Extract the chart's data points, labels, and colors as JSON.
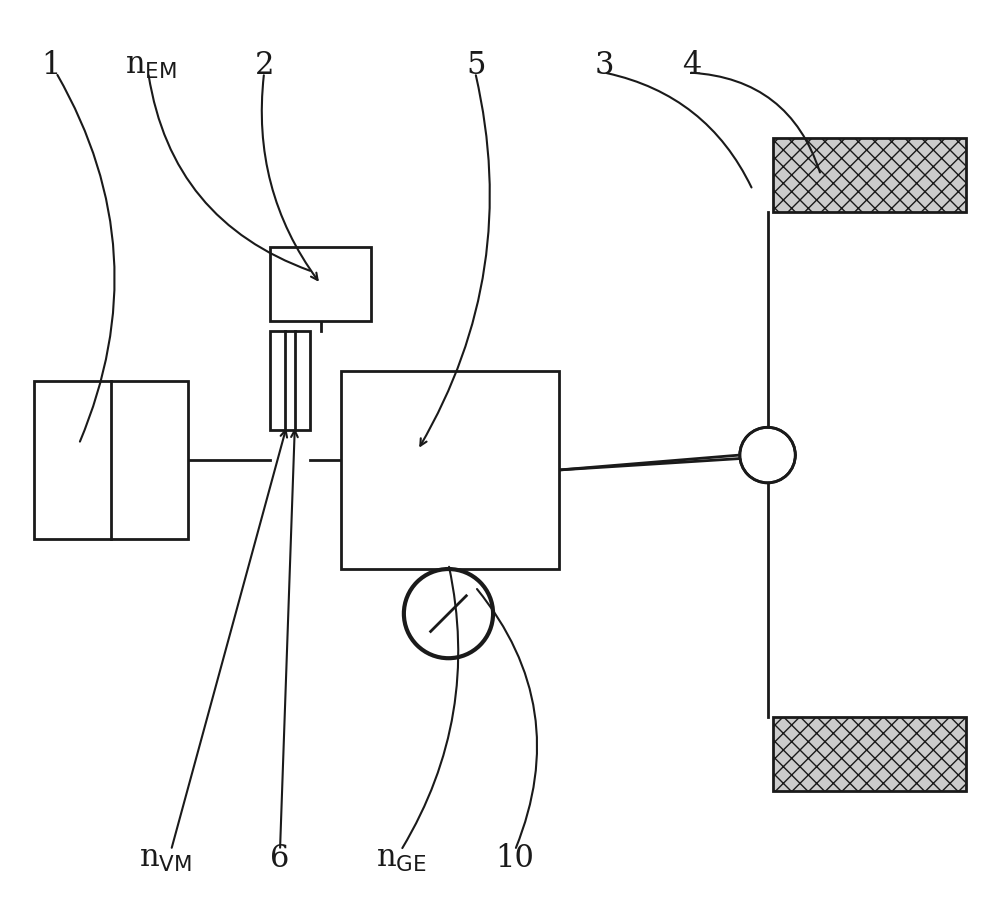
{
  "bg_color": "#ffffff",
  "line_color": "#1a1a1a",
  "lw": 2.0,
  "fig_w": 10.0,
  "fig_h": 9.24
}
